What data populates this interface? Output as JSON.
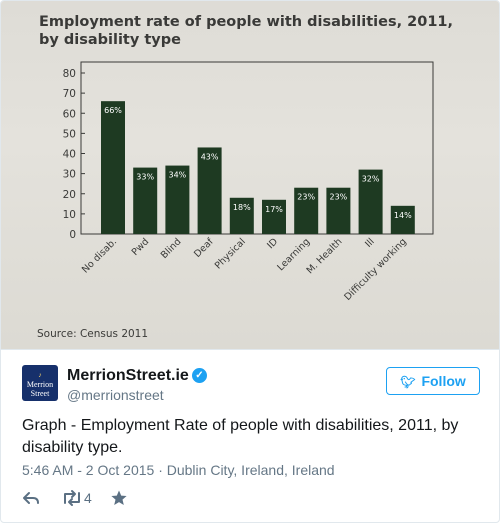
{
  "photo": {
    "title_line1": "Employment rate of people with disabilities, 2011,",
    "title_line2": "by disability type",
    "source": "Source: Census 2011"
  },
  "chart_data": {
    "type": "bar",
    "title": "Employment rate of people with disabilities, 2011, by disability type",
    "categories": [
      "No disab.",
      "Pwd",
      "Blind",
      "Deaf",
      "Physical",
      "ID",
      "Learning",
      "M. Health",
      "Ill",
      "Difficulty working"
    ],
    "values": [
      66,
      33,
      34,
      43,
      18,
      17,
      23,
      23,
      32,
      14
    ],
    "value_labels": [
      "66%",
      "33%",
      "34%",
      "43%",
      "18%",
      "17%",
      "23%",
      "23%",
      "32%",
      "14%"
    ],
    "yticks": [
      "0",
      "10",
      "20",
      "30",
      "40",
      "50",
      "60",
      "70",
      "80"
    ],
    "ylim": [
      0,
      80
    ],
    "bar_color": "#1e3a22",
    "grid": false,
    "legend": "none"
  },
  "tweet": {
    "avatar_text_line1": "Merrion",
    "avatar_text_line2": "Street",
    "display_name": "MerrionStreet.ie",
    "handle": "@merrionstreet",
    "follow_label": "Follow",
    "text": "Graph - Employment Rate of people with disabilities, 2011, by disability type.",
    "timestamp": "5:46 AM - 2 Oct 2015",
    "location": "Dublin City, Ireland, Ireland",
    "retweet_count": "4",
    "accent_color": "#1da1f2"
  },
  "icons": {
    "reply": "reply-icon",
    "retweet": "retweet-icon",
    "like": "star-icon",
    "verified": "verified-badge-icon",
    "follow_bird": "twitter-bird-icon"
  }
}
